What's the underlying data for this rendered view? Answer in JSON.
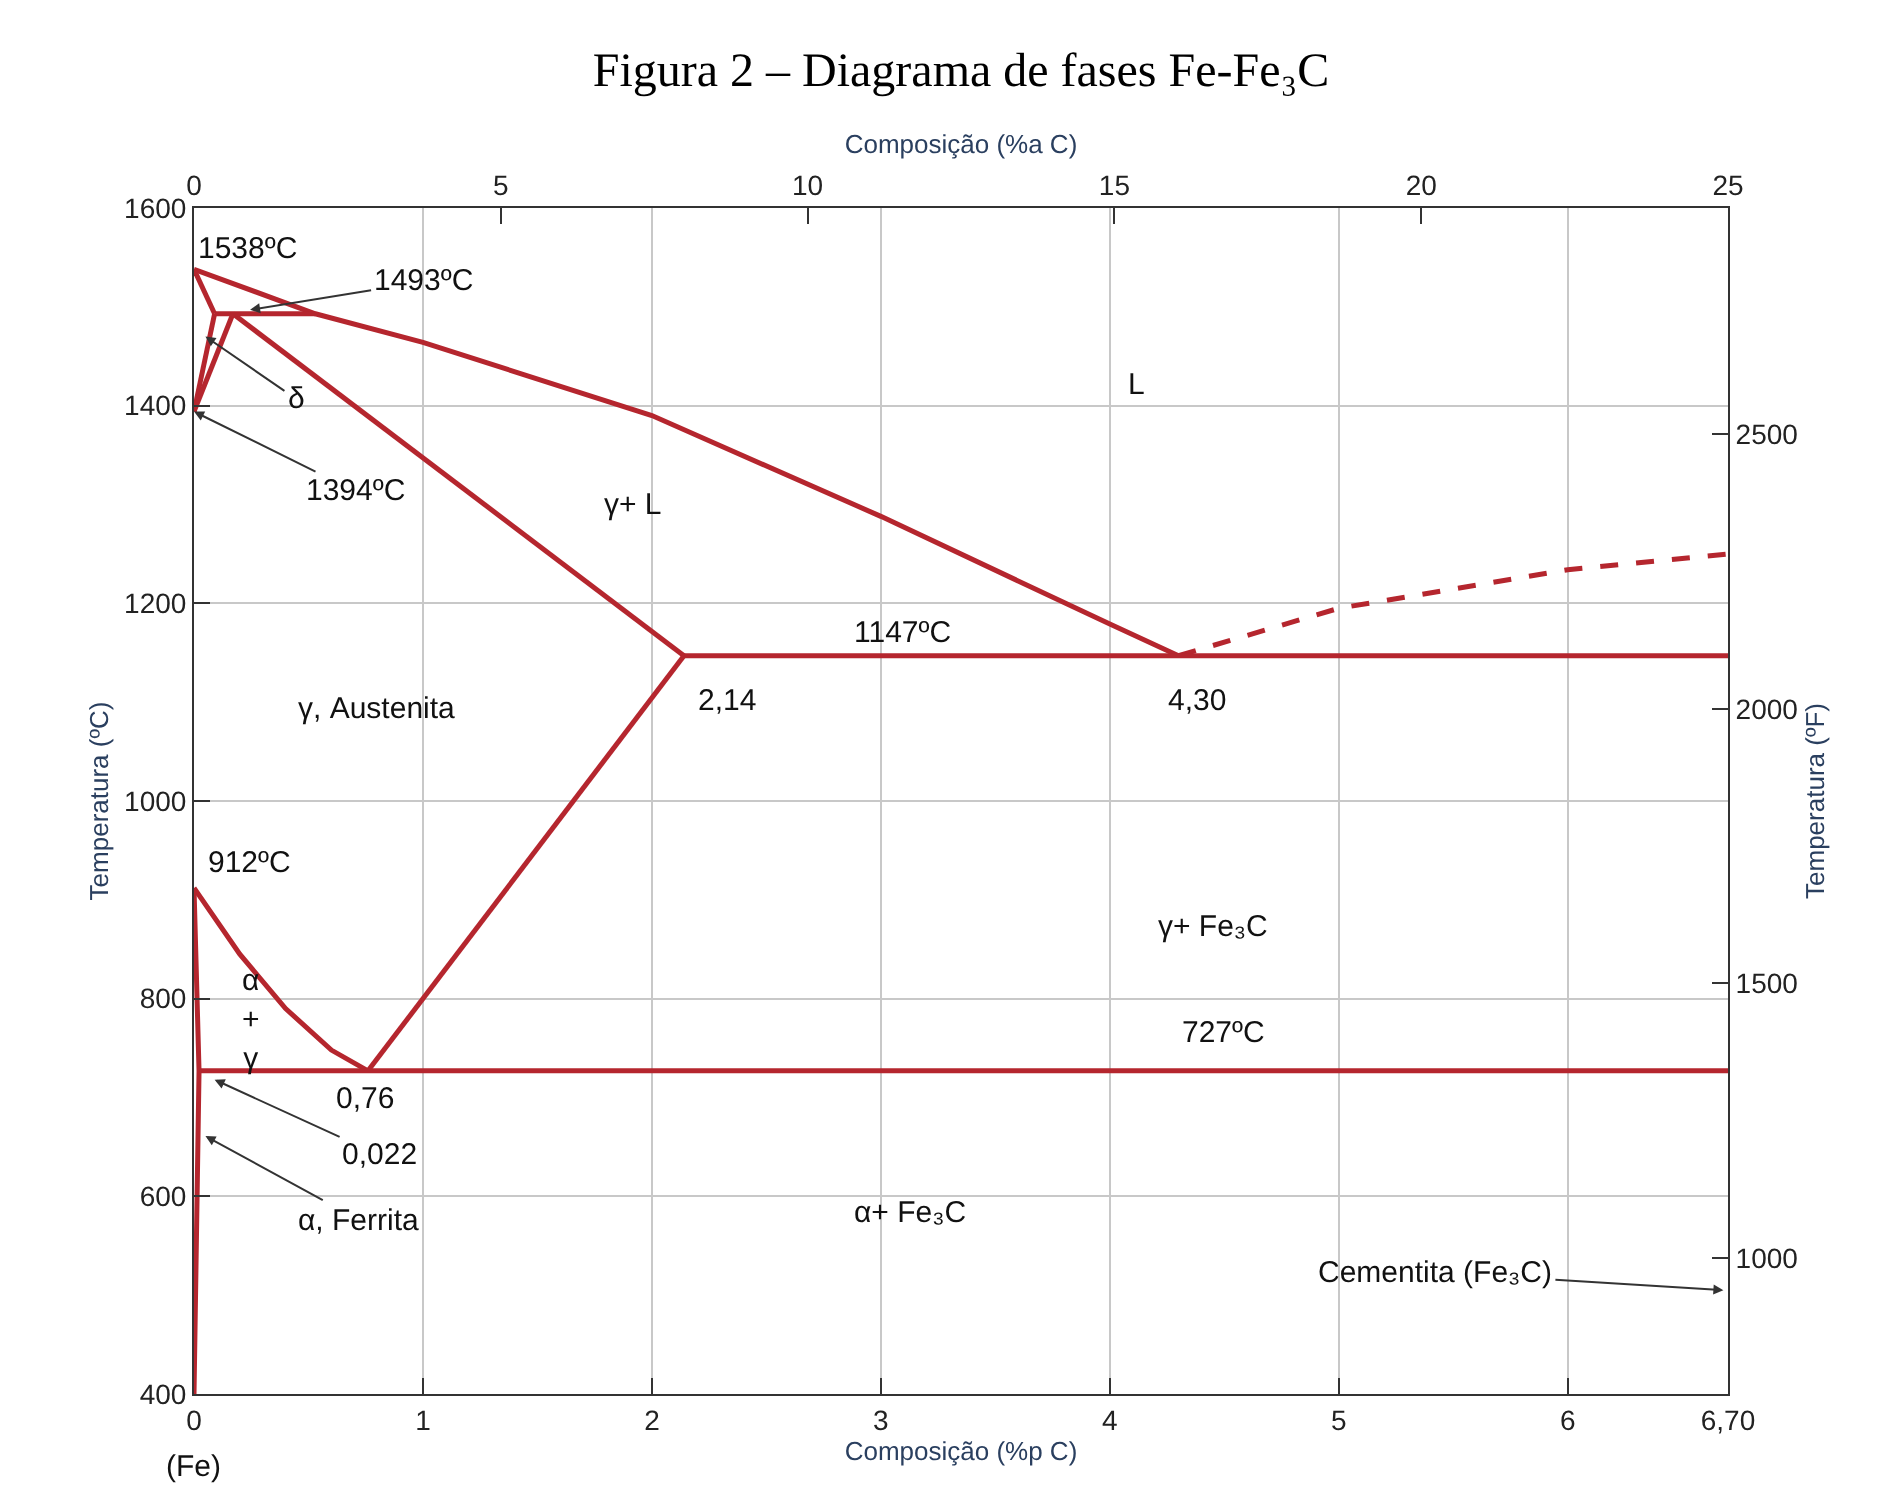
{
  "chart_data": {
    "type": "line",
    "title": "Figura 2 – Diagrama de fases Fe-Fe₃C",
    "xlabel": "Composição (%p C)",
    "x2label": "Composição (%a C)",
    "ylabel": "Temperatura (ºC)",
    "y2label": "Temperatura (ºF)",
    "xlim": [
      0,
      6.7
    ],
    "xticks": [
      0,
      1,
      2,
      3,
      4,
      5,
      6,
      {
        "value": 6.7,
        "label": "6,70"
      }
    ],
    "x2lim": [
      0,
      25
    ],
    "x2ticks": [
      0,
      5,
      10,
      15,
      20,
      25
    ],
    "ylim": [
      400,
      1600
    ],
    "yticks": [
      400,
      600,
      800,
      1000,
      1200,
      1400,
      1600
    ],
    "y2lim": [
      752,
      2912
    ],
    "y2ticks": [
      1000,
      1500,
      2000,
      2500
    ],
    "grid": true,
    "marker": "none",
    "line_style": "solid",
    "series": [
      {
        "color": "#b5262e",
        "x": [
          0,
          0.53,
          1,
          2,
          3,
          4,
          4.3
        ],
        "values": [
          1538,
          1493,
          1464,
          1390,
          1288,
          1179,
          1147
        ]
      },
      {
        "color": "#b5262e",
        "line_style": "dashed",
        "x": [
          4.3,
          5,
          6,
          6.7
        ],
        "values": [
          1147,
          1195,
          1234,
          1250
        ]
      },
      {
        "color": "#b5262e",
        "x": [
          2.14,
          6.7
        ],
        "values": [
          1147,
          1147
        ]
      },
      {
        "color": "#b5262e",
        "x": [
          0.17,
          2.14
        ],
        "values": [
          1493,
          1147
        ]
      },
      {
        "color": "#b5262e",
        "x": [
          0.09,
          0.53
        ],
        "values": [
          1493,
          1493
        ]
      },
      {
        "color": "#b5262e",
        "x": [
          0,
          0.09
        ],
        "values": [
          1538,
          1493
        ]
      },
      {
        "color": "#b5262e",
        "x": [
          0,
          0.09
        ],
        "values": [
          1394,
          1493
        ]
      },
      {
        "color": "#b5262e",
        "x": [
          0,
          0.17
        ],
        "values": [
          1394,
          1493
        ]
      },
      {
        "color": "#b5262e",
        "x": [
          2.14,
          0.76
        ],
        "values": [
          1147,
          727
        ]
      },
      {
        "color": "#b5262e",
        "x": [
          0,
          0.2,
          0.4,
          0.6,
          0.76
        ],
        "values": [
          912,
          845,
          790,
          748,
          727
        ]
      },
      {
        "color": "#b5262e",
        "x": [
          0.022,
          6.7
        ],
        "values": [
          727,
          727
        ]
      },
      {
        "color": "#b5262e",
        "x": [
          0,
          0.022,
          0
        ],
        "values": [
          912,
          727,
          400
        ]
      }
    ],
    "annotations": [
      {
        "text": "1538ºC",
        "x": 0,
        "y": 1538
      },
      {
        "text": "1493ºC",
        "x": 0.245,
        "y": 1497
      },
      {
        "text": "δ",
        "x": 0.05,
        "y": 1470
      },
      {
        "text": "1394ºC",
        "x": 0,
        "y": 1394
      },
      "L",
      "γ+ L",
      {
        "text": "1147ºC",
        "x": 3.1,
        "y": 1147
      },
      {
        "text": "2,14",
        "x": 2.14,
        "y": 1147
      },
      {
        "text": "4,30",
        "x": 4.3,
        "y": 1147
      },
      "γ, Austenita",
      {
        "text": "912ºC",
        "x": 0,
        "y": 912
      },
      "γ+ Fe₃C",
      "α\n+\nγ",
      {
        "text": "727ºC",
        "x": 4.5,
        "y": 727
      },
      {
        "text": "0,76",
        "x": 0.76,
        "y": 727
      },
      {
        "text": "0,022",
        "x": 0.09,
        "y": 718
      },
      {
        "text": "α, Ferrita",
        "x": 0.05,
        "y": 661
      },
      "α+ Fe₃C",
      "Cementita (Fe₃C)",
      "(Fe)"
    ]
  }
}
